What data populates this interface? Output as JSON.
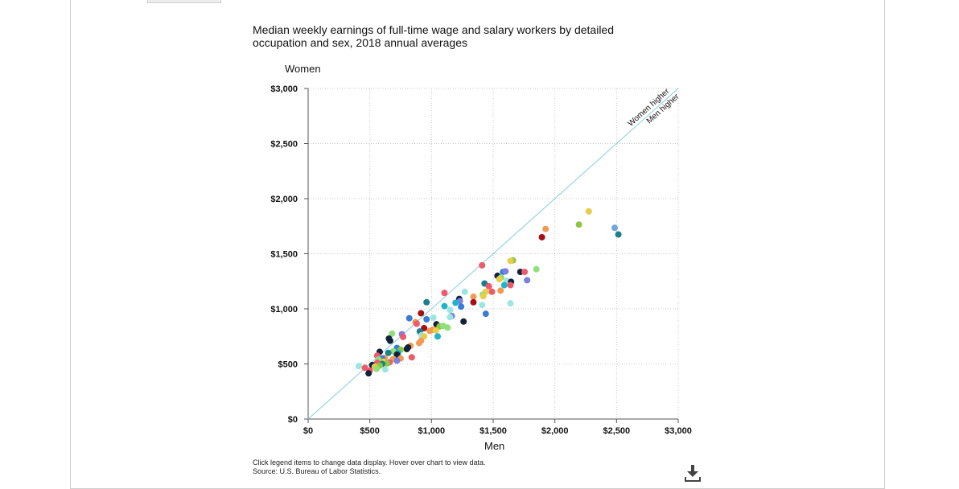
{
  "title": "Median weekly earnings of full-time wage and salary workers by detailed occupation and sex, 2018 annual averages",
  "footnotes": {
    "line1": "Click legend items to change data display. Hover over chart to view data.",
    "line2": "Source: U.S. Bureau of Labor Statistics."
  },
  "chart_data": {
    "type": "scatter",
    "xlabel": "Men",
    "ylabel": "Women",
    "xlim": [
      0,
      3000
    ],
    "ylim": [
      0,
      3000
    ],
    "x_ticks": [
      "$0",
      "$500",
      "$1,000",
      "$1,500",
      "$2,000",
      "$2,500",
      "$3,000"
    ],
    "y_ticks": [
      "$0",
      "$500",
      "$1,000",
      "$1,500",
      "$2,000",
      "$2,500",
      "$3,000"
    ],
    "grid": true,
    "reference_line": {
      "label_above": "Women higher",
      "label_below": "Men higher"
    },
    "points": [
      {
        "x": 2275,
        "y": 1885,
        "color": "#e8cd4a"
      },
      {
        "x": 1925,
        "y": 1725,
        "color": "#f29a55"
      },
      {
        "x": 2195,
        "y": 1765,
        "color": "#8ec63f"
      },
      {
        "x": 1895,
        "y": 1650,
        "color": "#a50f15"
      },
      {
        "x": 2485,
        "y": 1735,
        "color": "#6fa8dc"
      },
      {
        "x": 2515,
        "y": 1675,
        "color": "#1b7f8c"
      },
      {
        "x": 1410,
        "y": 1395,
        "color": "#f0596a"
      },
      {
        "x": 1660,
        "y": 1440,
        "color": "#8ec63f"
      },
      {
        "x": 1640,
        "y": 1435,
        "color": "#e8cd4a"
      },
      {
        "x": 1850,
        "y": 1360,
        "color": "#8fe07a"
      },
      {
        "x": 1580,
        "y": 1335,
        "color": "#3a7bd5"
      },
      {
        "x": 1600,
        "y": 1340,
        "color": "#7b7fe0"
      },
      {
        "x": 1720,
        "y": 1335,
        "color": "#14213d"
      },
      {
        "x": 1755,
        "y": 1335,
        "color": "#f0596a"
      },
      {
        "x": 1535,
        "y": 1300,
        "color": "#14213d"
      },
      {
        "x": 1565,
        "y": 1285,
        "color": "#8fe07a"
      },
      {
        "x": 1550,
        "y": 1270,
        "color": "#e8cd4a"
      },
      {
        "x": 1610,
        "y": 1255,
        "color": "#9be7e0"
      },
      {
        "x": 1775,
        "y": 1260,
        "color": "#7b7fe0"
      },
      {
        "x": 1430,
        "y": 1230,
        "color": "#1b7f8c"
      },
      {
        "x": 1645,
        "y": 1245,
        "color": "#14213d"
      },
      {
        "x": 1590,
        "y": 1215,
        "color": "#1fb4c9"
      },
      {
        "x": 1640,
        "y": 1215,
        "color": "#f0596a"
      },
      {
        "x": 1465,
        "y": 1205,
        "color": "#f0596a"
      },
      {
        "x": 1490,
        "y": 1155,
        "color": "#f0596a"
      },
      {
        "x": 1560,
        "y": 1165,
        "color": "#f29a55"
      },
      {
        "x": 1440,
        "y": 1155,
        "color": "#e8cd4a"
      },
      {
        "x": 1270,
        "y": 1155,
        "color": "#9be7e0"
      },
      {
        "x": 1105,
        "y": 1145,
        "color": "#f0596a"
      },
      {
        "x": 1415,
        "y": 1130,
        "color": "#8fe07a"
      },
      {
        "x": 1340,
        "y": 1110,
        "color": "#f29a55"
      },
      {
        "x": 1420,
        "y": 1115,
        "color": "#e8cd4a"
      },
      {
        "x": 1225,
        "y": 1090,
        "color": "#14213d"
      },
      {
        "x": 1230,
        "y": 1070,
        "color": "#7b7fe0"
      },
      {
        "x": 1195,
        "y": 1055,
        "color": "#1fb4c9"
      },
      {
        "x": 960,
        "y": 1060,
        "color": "#1b7f8c"
      },
      {
        "x": 1340,
        "y": 1060,
        "color": "#a50f15"
      },
      {
        "x": 1640,
        "y": 1050,
        "color": "#9be7e0"
      },
      {
        "x": 1105,
        "y": 1025,
        "color": "#1fb4c9"
      },
      {
        "x": 1240,
        "y": 1020,
        "color": "#3a7bd5"
      },
      {
        "x": 1410,
        "y": 1035,
        "color": "#9be7e0"
      },
      {
        "x": 1150,
        "y": 990,
        "color": "#9be7e0"
      },
      {
        "x": 1440,
        "y": 955,
        "color": "#3a7bd5"
      },
      {
        "x": 915,
        "y": 960,
        "color": "#a50f15"
      },
      {
        "x": 1165,
        "y": 935,
        "color": "#7b7fe0"
      },
      {
        "x": 1150,
        "y": 925,
        "color": "#9be7e0"
      },
      {
        "x": 820,
        "y": 915,
        "color": "#3a7bd5"
      },
      {
        "x": 1015,
        "y": 920,
        "color": "#9be7e0"
      },
      {
        "x": 960,
        "y": 905,
        "color": "#3a7bd5"
      },
      {
        "x": 1260,
        "y": 885,
        "color": "#14213d"
      },
      {
        "x": 870,
        "y": 880,
        "color": "#f29a55"
      },
      {
        "x": 1040,
        "y": 860,
        "color": "#14213d"
      },
      {
        "x": 1065,
        "y": 840,
        "color": "#8ec63f"
      },
      {
        "x": 1095,
        "y": 845,
        "color": "#8fe07a"
      },
      {
        "x": 880,
        "y": 865,
        "color": "#f0596a"
      },
      {
        "x": 1130,
        "y": 830,
        "color": "#8fe07a"
      },
      {
        "x": 940,
        "y": 825,
        "color": "#a50f15"
      },
      {
        "x": 1010,
        "y": 810,
        "color": "#f29a55"
      },
      {
        "x": 1035,
        "y": 805,
        "color": "#e8cd4a"
      },
      {
        "x": 985,
        "y": 800,
        "color": "#f29a55"
      },
      {
        "x": 905,
        "y": 795,
        "color": "#1b7f8c"
      },
      {
        "x": 680,
        "y": 775,
        "color": "#8fe07a"
      },
      {
        "x": 760,
        "y": 770,
        "color": "#7b7fe0"
      },
      {
        "x": 920,
        "y": 760,
        "color": "#9be7e0"
      },
      {
        "x": 1050,
        "y": 750,
        "color": "#1fb4c9"
      },
      {
        "x": 770,
        "y": 745,
        "color": "#f0596a"
      },
      {
        "x": 940,
        "y": 750,
        "color": "#e8cd4a"
      },
      {
        "x": 655,
        "y": 730,
        "color": "#14213d"
      },
      {
        "x": 665,
        "y": 710,
        "color": "#14213d"
      },
      {
        "x": 915,
        "y": 710,
        "color": "#f29a55"
      },
      {
        "x": 900,
        "y": 690,
        "color": "#f29a55"
      },
      {
        "x": 830,
        "y": 665,
        "color": "#f29a55"
      },
      {
        "x": 810,
        "y": 650,
        "color": "#14213d"
      },
      {
        "x": 720,
        "y": 645,
        "color": "#3a7bd5"
      },
      {
        "x": 800,
        "y": 635,
        "color": "#14213d"
      },
      {
        "x": 750,
        "y": 630,
        "color": "#8ec63f"
      },
      {
        "x": 580,
        "y": 610,
        "color": "#14213d"
      },
      {
        "x": 690,
        "y": 615,
        "color": "#8fe07a"
      },
      {
        "x": 650,
        "y": 600,
        "color": "#1b7f8c"
      },
      {
        "x": 730,
        "y": 600,
        "color": "#1fb4c9"
      },
      {
        "x": 560,
        "y": 575,
        "color": "#f0596a"
      },
      {
        "x": 720,
        "y": 585,
        "color": "#14213d"
      },
      {
        "x": 840,
        "y": 560,
        "color": "#f0596a"
      },
      {
        "x": 620,
        "y": 555,
        "color": "#f29a55"
      },
      {
        "x": 600,
        "y": 550,
        "color": "#3a7bd5"
      },
      {
        "x": 750,
        "y": 550,
        "color": "#f29a55"
      },
      {
        "x": 690,
        "y": 545,
        "color": "#f29a55"
      },
      {
        "x": 570,
        "y": 540,
        "color": "#8fe07a"
      },
      {
        "x": 720,
        "y": 530,
        "color": "#7b7fe0"
      },
      {
        "x": 610,
        "y": 520,
        "color": "#e8cd4a"
      },
      {
        "x": 660,
        "y": 515,
        "color": "#f0596a"
      },
      {
        "x": 560,
        "y": 510,
        "color": "#f0596a"
      },
      {
        "x": 640,
        "y": 505,
        "color": "#8ec63f"
      },
      {
        "x": 600,
        "y": 500,
        "color": "#1b7f8c"
      },
      {
        "x": 520,
        "y": 490,
        "color": "#14213d"
      },
      {
        "x": 580,
        "y": 485,
        "color": "#8ec63f"
      },
      {
        "x": 410,
        "y": 480,
        "color": "#9be7e0"
      },
      {
        "x": 540,
        "y": 475,
        "color": "#e8cd4a"
      },
      {
        "x": 460,
        "y": 465,
        "color": "#f0596a"
      },
      {
        "x": 555,
        "y": 455,
        "color": "#8fe07a"
      },
      {
        "x": 625,
        "y": 450,
        "color": "#9be7e0"
      },
      {
        "x": 500,
        "y": 440,
        "color": "#f0596a"
      },
      {
        "x": 490,
        "y": 415,
        "color": "#14213d"
      }
    ]
  }
}
